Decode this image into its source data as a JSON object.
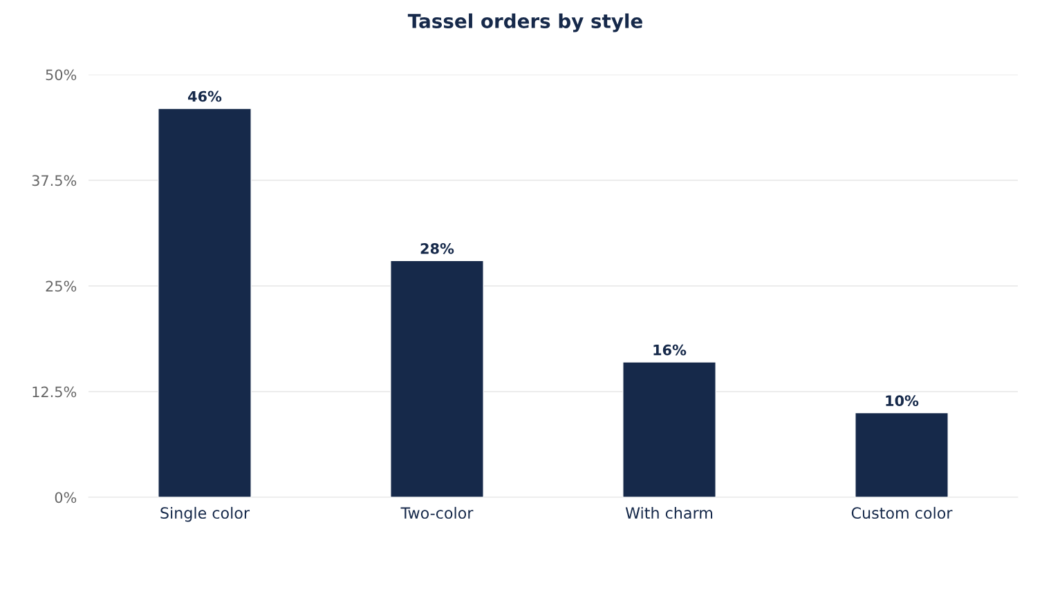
{
  "chart_data": {
    "type": "bar",
    "title": "Tassel orders by style",
    "categories": [
      "Single color",
      "Two-color",
      "With charm",
      "Custom color"
    ],
    "values": [
      46,
      28,
      16,
      10
    ],
    "value_labels": [
      "46%",
      "28%",
      "16%",
      "10%"
    ],
    "color": "#16294a",
    "ylim": [
      0,
      50
    ],
    "yticks": [
      {
        "value": 0,
        "label": "0%"
      },
      {
        "value": 12.5,
        "label": "12.5%"
      },
      {
        "value": 25,
        "label": "25%"
      },
      {
        "value": 37.5,
        "label": "37.5%"
      },
      {
        "value": 50,
        "label": "50%"
      }
    ],
    "grid": "y",
    "legend": false
  }
}
